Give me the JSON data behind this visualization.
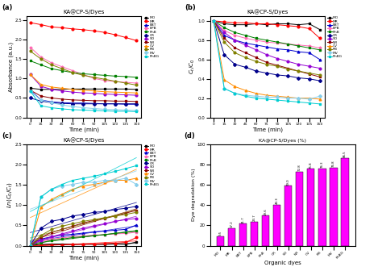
{
  "title": "KA@CP-S/Dyes",
  "dyes": [
    "MO",
    "MR",
    "EBT",
    "BPB",
    "RhB",
    "CR",
    "SO",
    "NR",
    "CV",
    "RB",
    "MV",
    "RhBG"
  ],
  "colors": [
    "#000000",
    "#ff0000",
    "#0000cd",
    "#ff69b4",
    "#008000",
    "#00008b",
    "#9400d3",
    "#8b0000",
    "#ff8c00",
    "#808000",
    "#87ceeb",
    "#00ced1"
  ],
  "markers": [
    "s",
    "o",
    "^",
    "p",
    "s",
    "D",
    "o",
    "s",
    "^",
    "o",
    "D",
    "s"
  ],
  "time": [
    0,
    15,
    30,
    45,
    60,
    75,
    90,
    105,
    120,
    135,
    150
  ],
  "absorbance": {
    "MO": [
      0.75,
      0.72,
      0.72,
      0.72,
      0.73,
      0.73,
      0.73,
      0.73,
      0.73,
      0.73,
      0.72
    ],
    "MR": [
      2.43,
      2.38,
      2.32,
      2.3,
      2.27,
      2.25,
      2.22,
      2.18,
      2.12,
      2.05,
      1.97
    ],
    "EBT": [
      0.7,
      0.45,
      0.4,
      0.38,
      0.37,
      0.37,
      0.36,
      0.35,
      0.35,
      0.34,
      0.34
    ],
    "BPB": [
      1.8,
      1.55,
      1.4,
      1.3,
      1.2,
      1.1,
      1.0,
      0.95,
      0.92,
      0.9,
      0.88
    ],
    "RhB": [
      1.45,
      1.35,
      1.25,
      1.2,
      1.15,
      1.12,
      1.1,
      1.08,
      1.06,
      1.05,
      1.03
    ],
    "CR": [
      0.5,
      0.42,
      0.38,
      0.36,
      0.35,
      0.35,
      0.35,
      0.35,
      0.35,
      0.35,
      0.35
    ],
    "SO": [
      1.1,
      0.8,
      0.72,
      0.68,
      0.65,
      0.63,
      0.62,
      0.6,
      0.59,
      0.58,
      0.57
    ],
    "NR": [
      0.7,
      0.55,
      0.5,
      0.47,
      0.45,
      0.44,
      0.43,
      0.43,
      0.42,
      0.42,
      0.41
    ],
    "CV": [
      1.1,
      0.85,
      0.78,
      0.75,
      0.72,
      0.7,
      0.68,
      0.66,
      0.65,
      0.64,
      0.63
    ],
    "RB": [
      1.7,
      1.5,
      1.35,
      1.25,
      1.15,
      1.08,
      1.03,
      0.98,
      0.93,
      0.88,
      0.83
    ],
    "MV": [
      0.68,
      0.45,
      0.38,
      0.32,
      0.28,
      0.25,
      0.23,
      0.21,
      0.2,
      0.19,
      0.18
    ],
    "RhBG": [
      0.68,
      0.3,
      0.25,
      0.22,
      0.2,
      0.19,
      0.18,
      0.17,
      0.16,
      0.16,
      0.15
    ]
  },
  "ct_c0": {
    "MO": [
      1.0,
      0.97,
      0.96,
      0.96,
      0.97,
      0.96,
      0.97,
      0.97,
      0.96,
      0.97,
      0.91
    ],
    "MR": [
      1.0,
      0.99,
      0.98,
      0.98,
      0.97,
      0.97,
      0.96,
      0.95,
      0.94,
      0.92,
      0.82
    ],
    "EBT": [
      1.0,
      0.85,
      0.8,
      0.77,
      0.75,
      0.73,
      0.71,
      0.7,
      0.68,
      0.67,
      0.6
    ],
    "BPB": [
      1.0,
      0.9,
      0.85,
      0.82,
      0.8,
      0.78,
      0.77,
      0.76,
      0.75,
      0.74,
      0.72
    ],
    "RhB": [
      1.0,
      0.93,
      0.88,
      0.85,
      0.82,
      0.8,
      0.78,
      0.76,
      0.74,
      0.72,
      0.7
    ],
    "CR": [
      1.0,
      0.65,
      0.55,
      0.52,
      0.48,
      0.46,
      0.44,
      0.43,
      0.41,
      0.4,
      0.38
    ],
    "SO": [
      1.0,
      0.88,
      0.8,
      0.75,
      0.7,
      0.65,
      0.61,
      0.58,
      0.55,
      0.53,
      0.51
    ],
    "NR": [
      1.0,
      0.82,
      0.72,
      0.67,
      0.62,
      0.57,
      0.54,
      0.51,
      0.48,
      0.45,
      0.42
    ],
    "CV": [
      1.0,
      0.39,
      0.32,
      0.28,
      0.25,
      0.23,
      0.22,
      0.21,
      0.2,
      0.2,
      0.19
    ],
    "RB": [
      1.0,
      0.78,
      0.67,
      0.62,
      0.58,
      0.55,
      0.53,
      0.5,
      0.48,
      0.46,
      0.44
    ],
    "MV": [
      1.0,
      0.3,
      0.25,
      0.23,
      0.22,
      0.21,
      0.21,
      0.2,
      0.2,
      0.19,
      0.22
    ],
    "RhBG": [
      1.0,
      0.3,
      0.25,
      0.22,
      0.2,
      0.19,
      0.18,
      0.17,
      0.16,
      0.15,
      0.14
    ]
  },
  "ln_rates": {
    "MO": [
      0.0,
      0.03,
      0.04,
      0.04,
      0.03,
      0.04,
      0.03,
      0.03,
      0.04,
      0.03,
      0.09
    ],
    "MR": [
      0.0,
      0.01,
      0.02,
      0.02,
      0.03,
      0.03,
      0.04,
      0.05,
      0.06,
      0.08,
      0.2
    ],
    "EBT": [
      0.0,
      0.16,
      0.22,
      0.26,
      0.28,
      0.31,
      0.34,
      0.36,
      0.38,
      0.4,
      0.51
    ],
    "BPB": [
      0.0,
      0.1,
      0.16,
      0.19,
      0.22,
      0.24,
      0.26,
      0.27,
      0.29,
      0.3,
      0.33
    ],
    "RhB": [
      0.0,
      0.07,
      0.13,
      0.16,
      0.2,
      0.22,
      0.25,
      0.27,
      0.3,
      0.33,
      0.36
    ],
    "CR": [
      0.0,
      0.43,
      0.6,
      0.65,
      0.73,
      0.77,
      0.82,
      0.84,
      0.89,
      0.92,
      0.97
    ],
    "SO": [
      0.0,
      0.13,
      0.22,
      0.29,
      0.36,
      0.43,
      0.49,
      0.54,
      0.6,
      0.64,
      0.67
    ],
    "NR": [
      0.0,
      0.2,
      0.33,
      0.4,
      0.48,
      0.56,
      0.62,
      0.67,
      0.73,
      0.8,
      0.87
    ],
    "CV": [
      0.0,
      0.94,
      1.14,
      1.27,
      1.39,
      1.47,
      1.51,
      1.56,
      1.61,
      1.61,
      1.66
    ],
    "RB": [
      0.0,
      0.25,
      0.4,
      0.48,
      0.54,
      0.6,
      0.64,
      0.69,
      0.73,
      0.77,
      0.82
    ],
    "MV": [
      0.0,
      1.2,
      1.39,
      1.47,
      1.51,
      1.56,
      1.56,
      1.61,
      1.61,
      1.66,
      1.51
    ],
    "RhBG": [
      0.0,
      1.2,
      1.39,
      1.51,
      1.61,
      1.66,
      1.71,
      1.77,
      1.83,
      1.9,
      1.97
    ]
  },
  "degradation_pct": [
    9.5,
    17.2,
    21.7,
    23.7,
    29.6,
    40.3,
    59.0,
    72.8,
    75.8,
    76.3,
    76.8,
    86.5
  ],
  "bar_color": "#ff00ff",
  "bar_labels": [
    "MO",
    "MR",
    "EBT",
    "BPB",
    "RhB",
    "CR",
    "SO",
    "NR",
    "CV",
    "RB",
    "MV",
    "RhBG"
  ],
  "bar_xlabel": "Organic dyes",
  "bar_ylabel": "Dye degradation (%)",
  "bar_title": "KA@CP-S/Dyes (%)"
}
